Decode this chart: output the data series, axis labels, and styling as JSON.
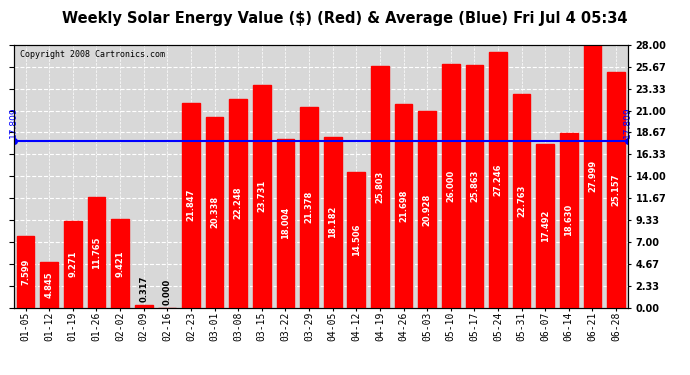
{
  "title": "Weekly Solar Energy Value ($) (Red) & Average (Blue) Fri Jul 4 05:34",
  "copyright": "Copyright 2008 Cartronics.com",
  "average_value": 17.809,
  "average_label": "17.809",
  "bar_color": "#FF0000",
  "average_line_color": "#0000FF",
  "background_color": "#FFFFFF",
  "plot_bg_color": "#D8D8D8",
  "grid_color": "#FFFFFF",
  "categories": [
    "01-05",
    "01-12",
    "01-19",
    "01-26",
    "02-02",
    "02-09",
    "02-16",
    "02-23",
    "03-01",
    "03-08",
    "03-15",
    "03-22",
    "03-29",
    "04-05",
    "04-12",
    "04-19",
    "04-26",
    "05-03",
    "05-10",
    "05-17",
    "05-24",
    "05-31",
    "06-07",
    "06-14",
    "06-21",
    "06-28"
  ],
  "values": [
    7.599,
    4.845,
    9.271,
    11.765,
    9.421,
    0.317,
    0.0,
    21.847,
    20.338,
    22.248,
    23.731,
    18.004,
    21.378,
    18.182,
    14.506,
    25.803,
    21.698,
    20.928,
    26.0,
    25.863,
    27.246,
    22.763,
    17.492,
    18.63,
    27.999,
    25.157
  ],
  "ylim": [
    0,
    28.0
  ],
  "yticks": [
    0.0,
    2.33,
    4.67,
    7.0,
    9.33,
    11.67,
    14.0,
    16.33,
    18.67,
    21.0,
    23.33,
    25.67,
    28.0
  ],
  "ylabel_right_labels": [
    "0.00",
    "2.33",
    "4.67",
    "7.00",
    "9.33",
    "11.67",
    "14.00",
    "16.33",
    "18.67",
    "21.00",
    "23.33",
    "25.67",
    "28.00"
  ],
  "bar_width": 0.75,
  "title_fontsize": 10.5,
  "tick_fontsize": 7,
  "value_fontsize": 6.0,
  "copyright_fontsize": 6
}
